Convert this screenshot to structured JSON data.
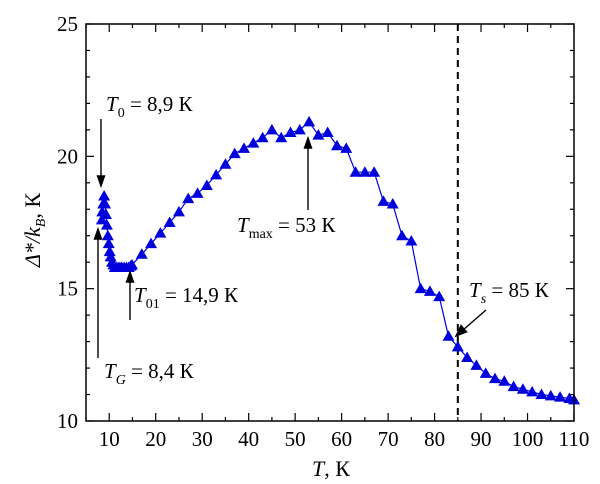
{
  "chart_data": {
    "type": "line",
    "xlabel": {
      "main": "T",
      "rest": ", К"
    },
    "ylabel": {
      "main": "Δ*/k",
      "sub": "B",
      "rest": ", К"
    },
    "xlim": [
      5,
      110
    ],
    "ylim": [
      10,
      25
    ],
    "x_ticks": [
      10,
      20,
      30,
      40,
      50,
      60,
      70,
      80,
      90,
      100,
      110
    ],
    "y_ticks": [
      10,
      15,
      20,
      25
    ],
    "grid": false,
    "legend": "none",
    "series_color": "#0000dd",
    "marker": "filled-triangle",
    "x": [
      8.4,
      8.5,
      8.7,
      8.9,
      9.1,
      9.3,
      9.5,
      9.7,
      9.9,
      10.1,
      10.3,
      10.6,
      10.9,
      11.2,
      11.5,
      11.9,
      12.3,
      12.7,
      13.2,
      13.7,
      14.2,
      14.6,
      14.9,
      17,
      19,
      21,
      23,
      25,
      27,
      29,
      31,
      33,
      35,
      37,
      39,
      41,
      43,
      45,
      47,
      49,
      51,
      53,
      55,
      57,
      59,
      61,
      63,
      65,
      67,
      69,
      71,
      73,
      75,
      77,
      79,
      81,
      83,
      85,
      87,
      89,
      91,
      93,
      95,
      97,
      99,
      101,
      103,
      105,
      107,
      109,
      110
    ],
    "values": [
      17.6,
      17.9,
      18.2,
      18.5,
      18.2,
      17.8,
      17.4,
      17.0,
      16.7,
      16.4,
      16.2,
      16.0,
      15.9,
      15.8,
      15.8,
      15.8,
      15.8,
      15.8,
      15.8,
      15.8,
      15.8,
      15.85,
      15.9,
      16.3,
      16.7,
      17.1,
      17.5,
      17.9,
      18.4,
      18.6,
      18.9,
      19.3,
      19.7,
      20.1,
      20.3,
      20.5,
      20.7,
      21.0,
      20.7,
      20.9,
      21.0,
      21.3,
      20.8,
      20.9,
      20.4,
      20.3,
      19.4,
      19.4,
      19.4,
      18.3,
      18.2,
      17.0,
      16.8,
      15.0,
      14.9,
      14.7,
      13.2,
      12.8,
      12.4,
      12.1,
      11.8,
      11.6,
      11.5,
      11.3,
      11.2,
      11.1,
      11.0,
      10.95,
      10.9,
      10.85,
      10.8
    ],
    "vline": {
      "x": 85,
      "style": "dashed"
    },
    "annotations": [
      {
        "id": "t0",
        "var": "T",
        "sub": "0",
        "text": " = 8,9 К"
      },
      {
        "id": "tg",
        "var": "T",
        "sub": "G",
        "text": " = 8,4 К"
      },
      {
        "id": "t01",
        "var": "T",
        "sub": "01",
        "text": " = 14,9 К"
      },
      {
        "id": "tmax",
        "var": "T",
        "sub": "max",
        "text": " = 53 К"
      },
      {
        "id": "ts",
        "var": "T",
        "sub": "s",
        "text": " = 85 К"
      }
    ]
  }
}
